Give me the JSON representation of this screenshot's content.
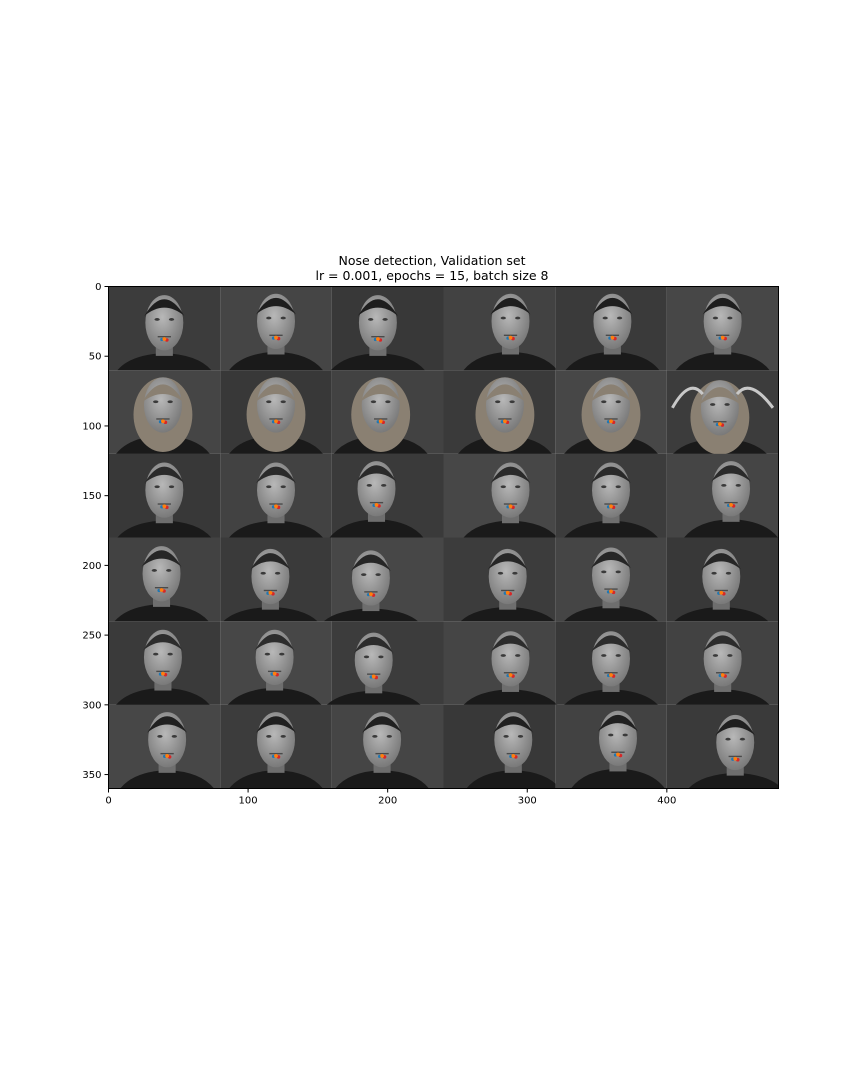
{
  "chart_data": {
    "type": "image-grid",
    "title": "Nose detection, Validation set",
    "subtitle": "lr = 0.001, epochs = 15, batch size 8",
    "xlabel": "",
    "ylabel": "",
    "xlim": [
      0,
      480
    ],
    "ylim": [
      360,
      0
    ],
    "x_ticks": [
      0,
      100,
      200,
      300,
      400
    ],
    "y_ticks": [
      0,
      50,
      100,
      150,
      200,
      250,
      300,
      350
    ],
    "grid": false,
    "grid_shape": {
      "rows": 6,
      "cols": 6
    },
    "tile_data_size": {
      "w": 80,
      "h": 60
    },
    "marker_colors": {
      "predicted": "#ff7f0e",
      "ground_truth": "#d62728",
      "extra": "#1f77b4"
    },
    "tiles": [
      {
        "row": 0,
        "col": 0,
        "subject": 1,
        "pose": "front",
        "nose": [
          40,
          38
        ]
      },
      {
        "row": 0,
        "col": 1,
        "subject": 1,
        "pose": "front",
        "nose": [
          120,
          37
        ]
      },
      {
        "row": 0,
        "col": 2,
        "subject": 1,
        "pose": "left",
        "nose": [
          193,
          38
        ]
      },
      {
        "row": 0,
        "col": 3,
        "subject": 1,
        "pose": "right",
        "nose": [
          288,
          37
        ]
      },
      {
        "row": 0,
        "col": 4,
        "subject": 1,
        "pose": "front",
        "nose": [
          361,
          37
        ]
      },
      {
        "row": 0,
        "col": 5,
        "subject": 1,
        "pose": "front",
        "nose": [
          440,
          37
        ]
      },
      {
        "row": 1,
        "col": 0,
        "subject": 2,
        "pose": "front",
        "nose": [
          39,
          97
        ]
      },
      {
        "row": 1,
        "col": 1,
        "subject": 2,
        "pose": "front",
        "nose": [
          120,
          97
        ]
      },
      {
        "row": 1,
        "col": 2,
        "subject": 2,
        "pose": "left",
        "nose": [
          195,
          97
        ]
      },
      {
        "row": 1,
        "col": 3,
        "subject": 2,
        "pose": "right",
        "nose": [
          284,
          97
        ]
      },
      {
        "row": 1,
        "col": 4,
        "subject": 2,
        "pose": "front",
        "nose": [
          360,
          97
        ]
      },
      {
        "row": 1,
        "col": 5,
        "subject": 2,
        "pose": "arms-up",
        "nose": [
          438,
          99
        ]
      },
      {
        "row": 2,
        "col": 0,
        "subject": 3,
        "pose": "front",
        "nose": [
          40,
          158
        ]
      },
      {
        "row": 2,
        "col": 1,
        "subject": 3,
        "pose": "front",
        "nose": [
          120,
          158
        ]
      },
      {
        "row": 2,
        "col": 2,
        "subject": 3,
        "pose": "left",
        "nose": [
          192,
          157
        ]
      },
      {
        "row": 2,
        "col": 3,
        "subject": 3,
        "pose": "right",
        "nose": [
          288,
          158
        ]
      },
      {
        "row": 2,
        "col": 4,
        "subject": 3,
        "pose": "front",
        "nose": [
          360,
          158
        ]
      },
      {
        "row": 2,
        "col": 5,
        "subject": 3,
        "pose": "right",
        "nose": [
          446,
          157
        ]
      },
      {
        "row": 3,
        "col": 0,
        "subject": 4,
        "pose": "front",
        "nose": [
          38,
          218
        ]
      },
      {
        "row": 3,
        "col": 1,
        "subject": 4,
        "pose": "front",
        "nose": [
          116,
          220
        ]
      },
      {
        "row": 3,
        "col": 2,
        "subject": 4,
        "pose": "left",
        "nose": [
          188,
          221
        ]
      },
      {
        "row": 3,
        "col": 3,
        "subject": 4,
        "pose": "right",
        "nose": [
          286,
          220
        ]
      },
      {
        "row": 3,
        "col": 4,
        "subject": 4,
        "pose": "front",
        "nose": [
          360,
          219
        ]
      },
      {
        "row": 3,
        "col": 5,
        "subject": 4,
        "pose": "front",
        "nose": [
          439,
          220
        ]
      },
      {
        "row": 4,
        "col": 0,
        "subject": 5,
        "pose": "front",
        "nose": [
          39,
          278
        ]
      },
      {
        "row": 4,
        "col": 1,
        "subject": 5,
        "pose": "front",
        "nose": [
          119,
          278
        ]
      },
      {
        "row": 4,
        "col": 2,
        "subject": 5,
        "pose": "left",
        "nose": [
          190,
          280
        ]
      },
      {
        "row": 4,
        "col": 3,
        "subject": 5,
        "pose": "right",
        "nose": [
          288,
          279
        ]
      },
      {
        "row": 4,
        "col": 4,
        "subject": 5,
        "pose": "front",
        "nose": [
          360,
          279
        ]
      },
      {
        "row": 4,
        "col": 5,
        "subject": 5,
        "pose": "front",
        "nose": [
          440,
          279
        ]
      },
      {
        "row": 5,
        "col": 0,
        "subject": 6,
        "pose": "front",
        "nose": [
          42,
          337
        ]
      },
      {
        "row": 5,
        "col": 1,
        "subject": 6,
        "pose": "front",
        "nose": [
          120,
          337
        ]
      },
      {
        "row": 5,
        "col": 2,
        "subject": 6,
        "pose": "left",
        "nose": [
          196,
          337
        ]
      },
      {
        "row": 5,
        "col": 3,
        "subject": 6,
        "pose": "right",
        "nose": [
          290,
          337
        ]
      },
      {
        "row": 5,
        "col": 4,
        "subject": 6,
        "pose": "front",
        "nose": [
          365,
          336
        ]
      },
      {
        "row": 5,
        "col": 5,
        "subject": 6,
        "pose": "right",
        "nose": [
          449,
          339
        ]
      }
    ]
  }
}
